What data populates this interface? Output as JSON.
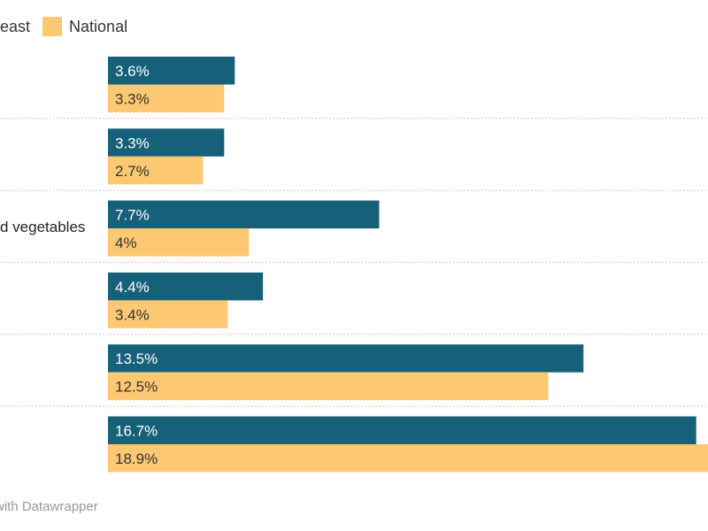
{
  "chart_data": {
    "type": "bar",
    "orientation": "horizontal",
    "categories": [
      "",
      "",
      "d vegetables",
      "",
      "",
      ""
    ],
    "series": [
      {
        "name": "east",
        "color": "#17607a",
        "values": [
          3.6,
          3.3,
          7.7,
          4.4,
          13.5,
          16.7
        ],
        "labels": [
          "3.6%",
          "3.3%",
          "7.7%",
          "4.4%",
          "13.5%",
          "16.7%"
        ]
      },
      {
        "name": "National",
        "color": "#fdc872",
        "values": [
          3.3,
          2.7,
          4,
          3.4,
          12.5,
          18.9
        ],
        "labels": [
          "3.3%",
          "2.7%",
          "4%",
          "3.4%",
          "12.5%",
          "18.9%"
        ]
      }
    ],
    "value_unit": "%",
    "grid": false,
    "legend_position": "top"
  },
  "footer": "with Datawrapper"
}
